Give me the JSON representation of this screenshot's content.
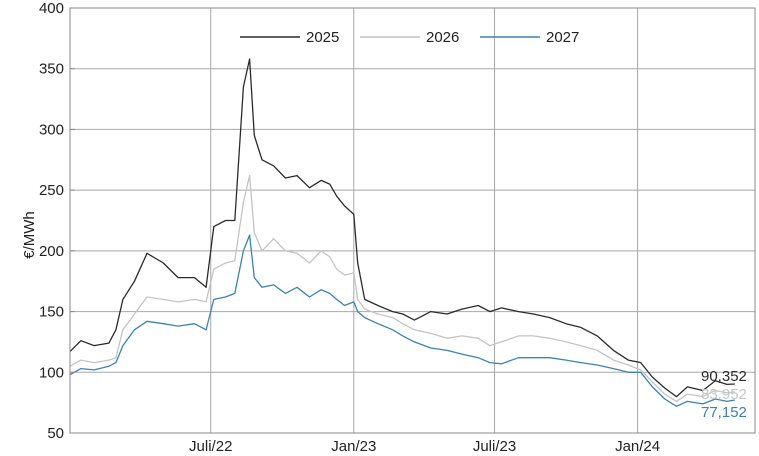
{
  "chart_data": {
    "type": "line",
    "title": "",
    "xlabel": "",
    "ylabel": "€/MWh",
    "ylim": [
      50,
      400
    ],
    "yticks": [
      50,
      100,
      150,
      200,
      250,
      300,
      350,
      400
    ],
    "x_range": [
      "2022-01-01",
      "2024-05-31"
    ],
    "xticks": [
      {
        "date": "2022-07-01",
        "label": "Juli/22"
      },
      {
        "date": "2023-01-01",
        "label": "Jan/23"
      },
      {
        "date": "2023-07-01",
        "label": "Juli/23"
      },
      {
        "date": "2024-01-01",
        "label": "Jan/24"
      }
    ],
    "grid": true,
    "legend_position": "top-center",
    "series": [
      {
        "name": "2025",
        "color": "#2b2b2b",
        "end_label": "90,352",
        "points": [
          [
            "2022-01-01",
            117
          ],
          [
            "2022-01-15",
            126
          ],
          [
            "2022-02-01",
            122
          ],
          [
            "2022-02-20",
            124
          ],
          [
            "2022-03-01",
            135
          ],
          [
            "2022-03-10",
            160
          ],
          [
            "2022-03-25",
            175
          ],
          [
            "2022-04-10",
            198
          ],
          [
            "2022-05-01",
            190
          ],
          [
            "2022-05-20",
            178
          ],
          [
            "2022-06-10",
            178
          ],
          [
            "2022-06-25",
            170
          ],
          [
            "2022-07-05",
            220
          ],
          [
            "2022-07-20",
            225
          ],
          [
            "2022-08-01",
            225
          ],
          [
            "2022-08-12",
            335
          ],
          [
            "2022-08-20",
            358
          ],
          [
            "2022-08-26",
            295
          ],
          [
            "2022-09-05",
            275
          ],
          [
            "2022-09-20",
            270
          ],
          [
            "2022-10-05",
            260
          ],
          [
            "2022-10-20",
            262
          ],
          [
            "2022-11-05",
            252
          ],
          [
            "2022-11-20",
            258
          ],
          [
            "2022-12-01",
            255
          ],
          [
            "2022-12-10",
            245
          ],
          [
            "2022-12-20",
            237
          ],
          [
            "2023-01-01",
            230
          ],
          [
            "2023-01-06",
            190
          ],
          [
            "2023-01-15",
            160
          ],
          [
            "2023-02-01",
            155
          ],
          [
            "2023-02-20",
            150
          ],
          [
            "2023-03-05",
            148
          ],
          [
            "2023-03-20",
            143
          ],
          [
            "2023-04-10",
            150
          ],
          [
            "2023-05-01",
            148
          ],
          [
            "2023-05-20",
            152
          ],
          [
            "2023-06-10",
            155
          ],
          [
            "2023-06-25",
            150
          ],
          [
            "2023-07-10",
            153
          ],
          [
            "2023-08-01",
            150
          ],
          [
            "2023-08-20",
            148
          ],
          [
            "2023-09-10",
            145
          ],
          [
            "2023-10-01",
            140
          ],
          [
            "2023-10-20",
            137
          ],
          [
            "2023-11-10",
            130
          ],
          [
            "2023-12-01",
            118
          ],
          [
            "2023-12-20",
            110
          ],
          [
            "2024-01-05",
            108
          ],
          [
            "2024-01-20",
            96
          ],
          [
            "2024-02-05",
            87
          ],
          [
            "2024-02-20",
            80
          ],
          [
            "2024-03-05",
            88
          ],
          [
            "2024-03-25",
            85
          ],
          [
            "2024-04-10",
            93
          ],
          [
            "2024-04-25",
            90
          ],
          [
            "2024-05-05",
            90.352
          ]
        ]
      },
      {
        "name": "2026",
        "color": "#c4c4c4",
        "end_label": "83,952",
        "points": [
          [
            "2022-01-01",
            105
          ],
          [
            "2022-01-15",
            110
          ],
          [
            "2022-02-01",
            108
          ],
          [
            "2022-02-20",
            110
          ],
          [
            "2022-03-01",
            112
          ],
          [
            "2022-03-10",
            135
          ],
          [
            "2022-03-25",
            148
          ],
          [
            "2022-04-10",
            162
          ],
          [
            "2022-05-01",
            160
          ],
          [
            "2022-05-20",
            158
          ],
          [
            "2022-06-10",
            160
          ],
          [
            "2022-06-25",
            158
          ],
          [
            "2022-07-05",
            185
          ],
          [
            "2022-07-20",
            190
          ],
          [
            "2022-08-01",
            192
          ],
          [
            "2022-08-12",
            240
          ],
          [
            "2022-08-20",
            262
          ],
          [
            "2022-08-26",
            215
          ],
          [
            "2022-09-05",
            200
          ],
          [
            "2022-09-20",
            210
          ],
          [
            "2022-10-05",
            200
          ],
          [
            "2022-10-20",
            198
          ],
          [
            "2022-11-05",
            190
          ],
          [
            "2022-11-20",
            200
          ],
          [
            "2022-12-01",
            195
          ],
          [
            "2022-12-10",
            185
          ],
          [
            "2022-12-20",
            180
          ],
          [
            "2023-01-01",
            182
          ],
          [
            "2023-01-06",
            160
          ],
          [
            "2023-01-15",
            152
          ],
          [
            "2023-02-01",
            148
          ],
          [
            "2023-02-20",
            145
          ],
          [
            "2023-03-05",
            140
          ],
          [
            "2023-03-20",
            135
          ],
          [
            "2023-04-10",
            132
          ],
          [
            "2023-05-01",
            128
          ],
          [
            "2023-05-20",
            130
          ],
          [
            "2023-06-10",
            128
          ],
          [
            "2023-06-25",
            122
          ],
          [
            "2023-07-10",
            125
          ],
          [
            "2023-08-01",
            130
          ],
          [
            "2023-08-20",
            130
          ],
          [
            "2023-09-10",
            128
          ],
          [
            "2023-10-01",
            125
          ],
          [
            "2023-10-20",
            122
          ],
          [
            "2023-11-10",
            118
          ],
          [
            "2023-12-01",
            110
          ],
          [
            "2023-12-20",
            106
          ],
          [
            "2024-01-05",
            102
          ],
          [
            "2024-01-20",
            92
          ],
          [
            "2024-02-05",
            82
          ],
          [
            "2024-02-20",
            76
          ],
          [
            "2024-03-05",
            82
          ],
          [
            "2024-03-25",
            80
          ],
          [
            "2024-04-10",
            85
          ],
          [
            "2024-04-25",
            83
          ],
          [
            "2024-05-05",
            83.952
          ]
        ]
      },
      {
        "name": "2027",
        "color": "#3a82b8",
        "end_label": "77,152",
        "points": [
          [
            "2022-01-01",
            98
          ],
          [
            "2022-01-15",
            103
          ],
          [
            "2022-02-01",
            102
          ],
          [
            "2022-02-20",
            105
          ],
          [
            "2022-03-01",
            108
          ],
          [
            "2022-03-10",
            122
          ],
          [
            "2022-03-25",
            135
          ],
          [
            "2022-04-10",
            142
          ],
          [
            "2022-05-01",
            140
          ],
          [
            "2022-05-20",
            138
          ],
          [
            "2022-06-10",
            140
          ],
          [
            "2022-06-25",
            135
          ],
          [
            "2022-07-05",
            160
          ],
          [
            "2022-07-20",
            162
          ],
          [
            "2022-08-01",
            165
          ],
          [
            "2022-08-12",
            200
          ],
          [
            "2022-08-20",
            213
          ],
          [
            "2022-08-26",
            178
          ],
          [
            "2022-09-05",
            170
          ],
          [
            "2022-09-20",
            172
          ],
          [
            "2022-10-05",
            165
          ],
          [
            "2022-10-20",
            170
          ],
          [
            "2022-11-05",
            162
          ],
          [
            "2022-11-20",
            168
          ],
          [
            "2022-12-01",
            165
          ],
          [
            "2022-12-10",
            160
          ],
          [
            "2022-12-20",
            155
          ],
          [
            "2023-01-01",
            158
          ],
          [
            "2023-01-06",
            150
          ],
          [
            "2023-01-15",
            145
          ],
          [
            "2023-02-01",
            140
          ],
          [
            "2023-02-20",
            135
          ],
          [
            "2023-03-05",
            130
          ],
          [
            "2023-03-20",
            125
          ],
          [
            "2023-04-10",
            120
          ],
          [
            "2023-05-01",
            118
          ],
          [
            "2023-05-20",
            115
          ],
          [
            "2023-06-10",
            112
          ],
          [
            "2023-06-25",
            108
          ],
          [
            "2023-07-10",
            107
          ],
          [
            "2023-08-01",
            112
          ],
          [
            "2023-08-20",
            112
          ],
          [
            "2023-09-10",
            112
          ],
          [
            "2023-10-01",
            110
          ],
          [
            "2023-10-20",
            108
          ],
          [
            "2023-11-10",
            106
          ],
          [
            "2023-12-01",
            103
          ],
          [
            "2023-12-20",
            100
          ],
          [
            "2024-01-05",
            100
          ],
          [
            "2024-01-20",
            88
          ],
          [
            "2024-02-05",
            78
          ],
          [
            "2024-02-20",
            72
          ],
          [
            "2024-03-05",
            76
          ],
          [
            "2024-03-25",
            74
          ],
          [
            "2024-04-10",
            78
          ],
          [
            "2024-04-25",
            76
          ],
          [
            "2024-05-05",
            77.152
          ]
        ]
      }
    ]
  }
}
